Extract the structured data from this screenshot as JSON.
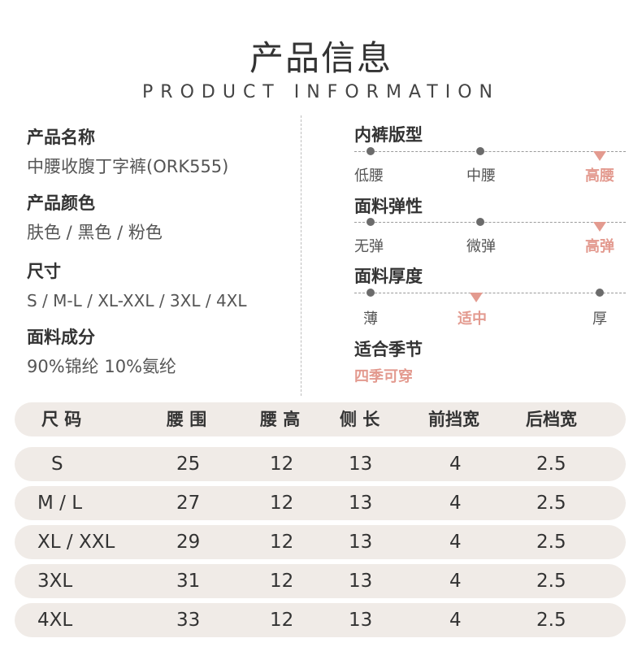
{
  "header": {
    "title": "产品信息",
    "subtitle": "PRODUCT INFORMATION"
  },
  "info": [
    {
      "label": "产品名称",
      "value": "中腰收腹丁字裤(ORK555)"
    },
    {
      "label": "产品颜色",
      "value": "肤色 /  黑色 / 粉色"
    },
    {
      "label": "尺寸",
      "value": "S / M-L / XL-XXL /  3XL / 4XL"
    },
    {
      "label": "面料成分",
      "value": "90%锦纶 10%氨纶"
    }
  ],
  "attributes": [
    {
      "label": "内裤版型",
      "options": [
        "低腰",
        "中腰",
        "高腰"
      ],
      "selected": 2
    },
    {
      "label": "面料弹性",
      "options": [
        "无弹",
        "微弹",
        "高弹"
      ],
      "selected": 2
    },
    {
      "label": "面料厚度",
      "options": [
        "薄",
        "适中",
        "厚"
      ],
      "selected": 1
    }
  ],
  "season": {
    "label": "适合季节",
    "value": "四季可穿"
  },
  "colors": {
    "accent": "#e39a8f",
    "row_bg": "#f0ebe7",
    "dot": "#6b6b6b"
  },
  "size_table": {
    "headers": [
      "尺 码",
      "腰 围",
      "腰 高",
      "侧 长",
      "前挡宽",
      "后档宽"
    ],
    "rows": [
      [
        "S",
        "25",
        "12",
        "13",
        "4",
        "2.5"
      ],
      [
        "M / L",
        "27",
        "12",
        "13",
        "4",
        "2.5"
      ],
      [
        "XL / XXL",
        "29",
        "12",
        "13",
        "4",
        "2.5"
      ],
      [
        "3XL",
        "31",
        "12",
        "13",
        "4",
        "2.5"
      ],
      [
        "4XL",
        "33",
        "12",
        "13",
        "4",
        "2.5"
      ]
    ]
  }
}
